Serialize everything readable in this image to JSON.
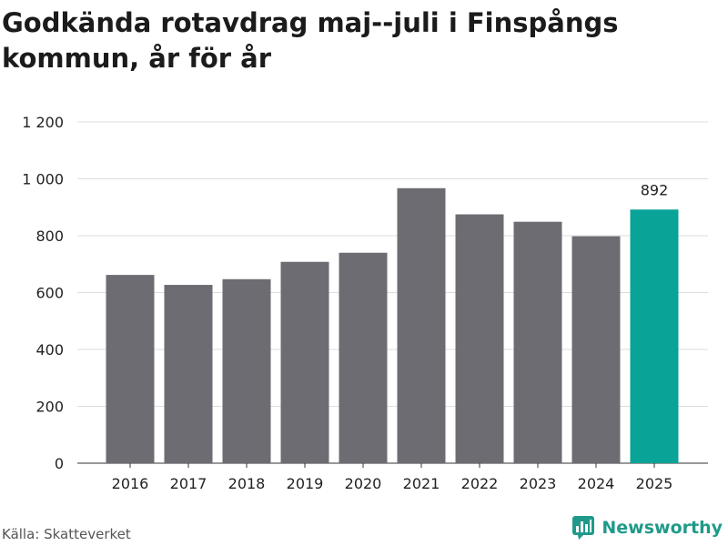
{
  "title": "Godkända rotavdrag maj--juli i Finspångs kommun, år för år",
  "source": "Källa: Skatteverket",
  "brand": {
    "name": "Newsworthy",
    "icon": "newsworthy-logo-icon"
  },
  "colors": {
    "bar": "#6d6c72",
    "highlight": "#0aa398",
    "grid": "#dddddd",
    "brand": "#1f9a8a"
  },
  "chart_data": {
    "type": "bar",
    "title": "Godkända rotavdrag maj--juli i Finspångs kommun, år för år",
    "xlabel": "",
    "ylabel": "",
    "categories": [
      "2016",
      "2017",
      "2018",
      "2019",
      "2020",
      "2021",
      "2022",
      "2023",
      "2024",
      "2025"
    ],
    "values": [
      662,
      627,
      647,
      708,
      740,
      967,
      875,
      849,
      798,
      892
    ],
    "ylim": [
      0,
      1200
    ],
    "yticks": [
      0,
      200,
      400,
      600,
      800,
      1000,
      1200
    ],
    "ytick_labels": [
      "0",
      "200",
      "400",
      "600",
      "800",
      "1 000",
      "1 200"
    ],
    "highlight_index": 9,
    "highlight_label": "892",
    "grid": true
  }
}
